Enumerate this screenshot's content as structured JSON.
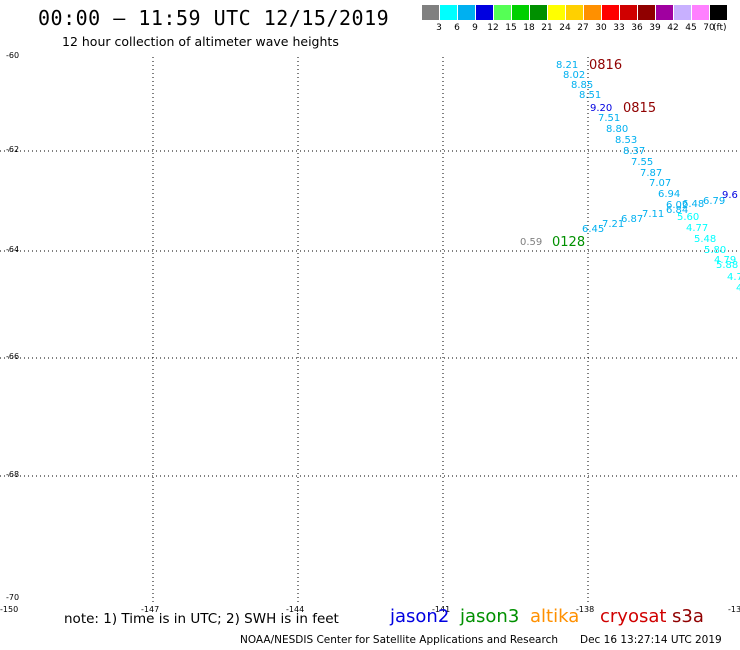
{
  "header": {
    "title": "00:00 – 11:59 UTC 12/15/2019",
    "subtitle": "12 hour collection of altimeter wave heights"
  },
  "color_scale": {
    "unit": "(ft)",
    "bins": [
      {
        "label": "3",
        "color": "#808080"
      },
      {
        "label": "6",
        "color": "#00ffff"
      },
      {
        "label": "9",
        "color": "#00b0f0"
      },
      {
        "label": "12",
        "color": "#0000e0"
      },
      {
        "label": "15",
        "color": "#55ff55"
      },
      {
        "label": "18",
        "color": "#00d000"
      },
      {
        "label": "21",
        "color": "#009000"
      },
      {
        "label": "24",
        "color": "#ffff00"
      },
      {
        "label": "27",
        "color": "#ffd000"
      },
      {
        "label": "30",
        "color": "#ff9000"
      },
      {
        "label": "33",
        "color": "#ff0000"
      },
      {
        "label": "36",
        "color": "#d00000"
      },
      {
        "label": "39",
        "color": "#900000"
      },
      {
        "label": "42",
        "color": "#a000a0"
      },
      {
        "label": "45",
        "color": "#c8b0ff"
      },
      {
        "label": "70",
        "color": "#ff80ff"
      },
      {
        "label": "",
        "color": "#000000"
      }
    ]
  },
  "axes": {
    "latitude_labels": [
      "-60",
      "-62",
      "-64",
      "-66",
      "-68",
      "-70"
    ],
    "longitude_labels": [
      "-150",
      "-147",
      "-144",
      "-141",
      "-138",
      "-13"
    ]
  },
  "observations": [
    {
      "text": "8.21",
      "color": "#00b0f0"
    },
    {
      "text": "8.02",
      "color": "#00b0f0"
    },
    {
      "text": "8.85",
      "color": "#00b0f0"
    },
    {
      "text": "8.51",
      "color": "#00b0f0"
    },
    {
      "text": "9.20",
      "color": "#0000e0"
    },
    {
      "text": "7.51",
      "color": "#00b0f0"
    },
    {
      "text": "8.80",
      "color": "#00b0f0"
    },
    {
      "text": "8.53",
      "color": "#00b0f0"
    },
    {
      "text": "8.37",
      "color": "#00b0f0"
    },
    {
      "text": "7.55",
      "color": "#00b0f0"
    },
    {
      "text": "7.87",
      "color": "#00b0f0"
    },
    {
      "text": "7.07",
      "color": "#00b0f0"
    },
    {
      "text": "6.94",
      "color": "#00b0f0"
    },
    {
      "text": "6.02",
      "color": "#00b0f0"
    },
    {
      "text": "6.48",
      "color": "#00b0f0"
    },
    {
      "text": "6.79",
      "color": "#00b0f0"
    },
    {
      "text": "9.6",
      "color": "#0000e0"
    },
    {
      "text": "6.84",
      "color": "#00b0f0"
    },
    {
      "text": "7.11",
      "color": "#00b0f0"
    },
    {
      "text": "6.87",
      "color": "#00b0f0"
    },
    {
      "text": "5.60",
      "color": "#00ffff"
    },
    {
      "text": "7.21",
      "color": "#00b0f0"
    },
    {
      "text": "4.77",
      "color": "#00ffff"
    },
    {
      "text": "6.45",
      "color": "#00b0f0"
    },
    {
      "text": "5.48",
      "color": "#00ffff"
    },
    {
      "text": "0.59",
      "color": "#808080"
    },
    {
      "text": "5.80",
      "color": "#00ffff"
    },
    {
      "text": "4.79",
      "color": "#00ffff"
    },
    {
      "text": "5.88",
      "color": "#00ffff"
    },
    {
      "text": "4.7",
      "color": "#00ffff"
    },
    {
      "text": "4",
      "color": "#00ffff"
    }
  ],
  "time_labels": [
    {
      "text": "0816",
      "color": "#900000"
    },
    {
      "text": "0815",
      "color": "#900000"
    },
    {
      "text": "0128",
      "color": "#009000"
    }
  ],
  "footer": {
    "note": "note: 1) Time is in UTC; 2) SWH is in feet",
    "satellites": [
      {
        "name": "jason2",
        "color": "#0000e0"
      },
      {
        "name": "jason3",
        "color": "#009000"
      },
      {
        "name": "altika",
        "color": "#ff9000"
      },
      {
        "name": "cryosat",
        "color": "#d00000"
      },
      {
        "name": "s3a",
        "color": "#900000"
      }
    ],
    "credit": "NOAA/NESDIS Center for Satellite Applications and Research",
    "timestamp": "Dec 16 13:27:14 UTC 2019"
  }
}
